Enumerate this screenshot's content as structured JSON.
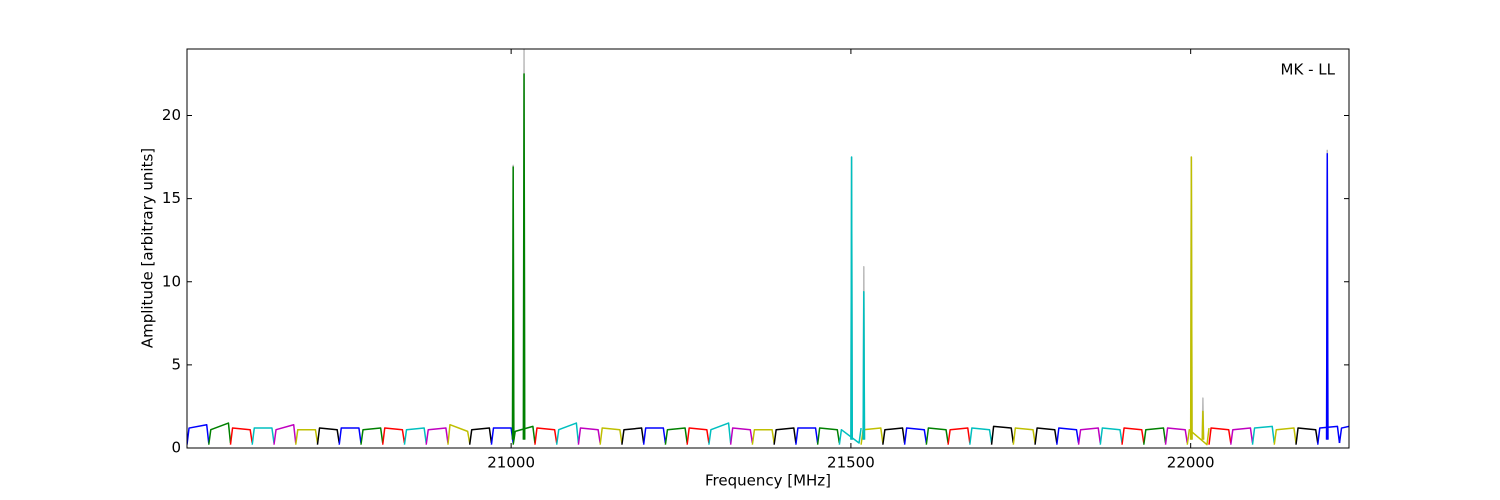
{
  "chart_data": {
    "type": "line",
    "annotation": "MK - LL",
    "x_label": "Frequency [MHz]",
    "y_label": "Amplitude [arbitrary units]",
    "xlim": [
      20523,
      22233
    ],
    "ylim": [
      0,
      24
    ],
    "xticks": [
      21000,
      21500,
      22000
    ],
    "yticks": [
      0,
      5,
      10,
      15,
      20
    ],
    "series": [
      {
        "color": "#bbbbbb",
        "x": [
          21002,
          21003,
          21004
        ],
        "values": [
          0.5,
          17.0,
          0.5
        ]
      },
      {
        "color": "#bbbbbb",
        "x": [
          21018,
          21019,
          21020
        ],
        "values": [
          0.5,
          24,
          0.5
        ]
      },
      {
        "color": "#bbbbbb",
        "x": [
          21500,
          21501,
          21502
        ],
        "values": [
          0.5,
          17.5,
          0.5
        ]
      },
      {
        "color": "#bbbbbb",
        "x": [
          21518,
          21519,
          21520
        ],
        "values": [
          0.5,
          10.9,
          0.5
        ]
      },
      {
        "color": "#bbbbbb",
        "x": [
          22000,
          22001,
          22002
        ],
        "values": [
          0.5,
          17.5,
          0.5
        ]
      },
      {
        "color": "#bbbbbb",
        "x": [
          22017,
          22018,
          22019
        ],
        "values": [
          0.5,
          3.0,
          0.5
        ]
      },
      {
        "color": "#bbbbbb",
        "x": [
          22200,
          22201,
          22202
        ],
        "values": [
          0.5,
          17.9,
          0.5
        ]
      },
      {
        "color": "#0000ff",
        "x": [
          20523,
          20526,
          20552,
          20555
        ],
        "values": [
          0.2,
          1.2,
          1.4,
          0.3
        ]
      },
      {
        "color": "#008000",
        "x": [
          20555,
          20558,
          20584,
          20587
        ],
        "values": [
          0.2,
          1.1,
          1.5,
          0.3
        ]
      },
      {
        "color": "#ff0000",
        "x": [
          20587,
          20590,
          20616,
          20619
        ],
        "values": [
          0.2,
          1.2,
          1.1,
          0.3
        ]
      },
      {
        "color": "#00bfbf",
        "x": [
          20619,
          20622,
          20648,
          20651
        ],
        "values": [
          0.2,
          1.2,
          1.2,
          0.3
        ]
      },
      {
        "color": "#bf00bf",
        "x": [
          20651,
          20654,
          20680,
          20683
        ],
        "values": [
          0.2,
          1.1,
          1.4,
          0.3
        ]
      },
      {
        "color": "#bfbf00",
        "x": [
          20683,
          20686,
          20712,
          20715
        ],
        "values": [
          0.2,
          1.1,
          1.1,
          0.3
        ]
      },
      {
        "color": "#000000",
        "x": [
          20715,
          20718,
          20744,
          20747
        ],
        "values": [
          0.2,
          1.2,
          1.1,
          0.3
        ]
      },
      {
        "color": "#0000ff",
        "x": [
          20747,
          20750,
          20776,
          20779
        ],
        "values": [
          0.2,
          1.2,
          1.2,
          0.3
        ]
      },
      {
        "color": "#008000",
        "x": [
          20779,
          20782,
          20808,
          20811
        ],
        "values": [
          0.2,
          1.1,
          1.2,
          0.3
        ]
      },
      {
        "color": "#ff0000",
        "x": [
          20811,
          20814,
          20840,
          20843
        ],
        "values": [
          0.2,
          1.2,
          1.1,
          0.3
        ]
      },
      {
        "color": "#00bfbf",
        "x": [
          20843,
          20846,
          20872,
          20875
        ],
        "values": [
          0.2,
          1.1,
          1.2,
          0.3
        ]
      },
      {
        "color": "#bf00bf",
        "x": [
          20875,
          20878,
          20904,
          20907
        ],
        "values": [
          0.2,
          1.1,
          1.2,
          0.3
        ]
      },
      {
        "color": "#bfbf00",
        "x": [
          20907,
          20910,
          20936,
          20939
        ],
        "values": [
          0.2,
          1.4,
          1.0,
          0.3
        ]
      },
      {
        "color": "#000000",
        "x": [
          20939,
          20942,
          20968,
          20971
        ],
        "values": [
          0.2,
          1.1,
          1.2,
          0.3
        ]
      },
      {
        "color": "#0000ff",
        "x": [
          20971,
          20974,
          21000,
          21003
        ],
        "values": [
          0.2,
          1.2,
          1.2,
          0.3
        ]
      },
      {
        "color": "#008000",
        "x": [
          21003,
          21006,
          21032,
          21035
        ],
        "values": [
          0.2,
          1.0,
          1.3,
          0.3
        ]
      },
      {
        "color": "#ff0000",
        "x": [
          21035,
          21038,
          21064,
          21067
        ],
        "values": [
          0.2,
          1.2,
          1.1,
          0.3
        ]
      },
      {
        "color": "#00bfbf",
        "x": [
          21067,
          21070,
          21096,
          21099
        ],
        "values": [
          0.2,
          1.1,
          1.5,
          0.3
        ]
      },
      {
        "color": "#bf00bf",
        "x": [
          21099,
          21102,
          21128,
          21131
        ],
        "values": [
          0.2,
          1.2,
          1.1,
          0.3
        ]
      },
      {
        "color": "#bfbf00",
        "x": [
          21131,
          21134,
          21160,
          21163
        ],
        "values": [
          0.2,
          1.2,
          1.1,
          0.3
        ]
      },
      {
        "color": "#000000",
        "x": [
          21163,
          21166,
          21192,
          21195
        ],
        "values": [
          0.2,
          1.1,
          1.2,
          0.3
        ]
      },
      {
        "color": "#0000ff",
        "x": [
          21195,
          21198,
          21224,
          21227
        ],
        "values": [
          0.2,
          1.2,
          1.2,
          0.3
        ]
      },
      {
        "color": "#008000",
        "x": [
          21227,
          21230,
          21256,
          21259
        ],
        "values": [
          0.2,
          1.1,
          1.2,
          0.3
        ]
      },
      {
        "color": "#ff0000",
        "x": [
          21259,
          21262,
          21288,
          21291
        ],
        "values": [
          0.2,
          1.2,
          1.1,
          0.3
        ]
      },
      {
        "color": "#00bfbf",
        "x": [
          21291,
          21294,
          21320,
          21323
        ],
        "values": [
          0.2,
          1.1,
          1.5,
          0.3
        ]
      },
      {
        "color": "#bf00bf",
        "x": [
          21323,
          21326,
          21352,
          21355
        ],
        "values": [
          0.2,
          1.2,
          1.1,
          0.3
        ]
      },
      {
        "color": "#bfbf00",
        "x": [
          21355,
          21358,
          21384,
          21387
        ],
        "values": [
          0.2,
          1.1,
          1.1,
          0.3
        ]
      },
      {
        "color": "#000000",
        "x": [
          21387,
          21390,
          21416,
          21419
        ],
        "values": [
          0.2,
          1.1,
          1.2,
          0.3
        ]
      },
      {
        "color": "#0000ff",
        "x": [
          21419,
          21422,
          21448,
          21451
        ],
        "values": [
          0.2,
          1.2,
          1.2,
          0.3
        ]
      },
      {
        "color": "#008000",
        "x": [
          21451,
          21454,
          21480,
          21483
        ],
        "values": [
          0.2,
          1.2,
          1.1,
          0.3
        ]
      },
      {
        "color": "#00bfbf",
        "x": [
          21483,
          21486,
          21512,
          21515
        ],
        "values": [
          0.2,
          1.1,
          0.3,
          1.2
        ]
      },
      {
        "color": "#bfbf00",
        "x": [
          21515,
          21518,
          21544,
          21547
        ],
        "values": [
          0.2,
          1.1,
          1.2,
          0.3
        ]
      },
      {
        "color": "#000000",
        "x": [
          21547,
          21550,
          21576,
          21579
        ],
        "values": [
          0.2,
          1.1,
          1.2,
          0.3
        ]
      },
      {
        "color": "#0000ff",
        "x": [
          21579,
          21582,
          21608,
          21611
        ],
        "values": [
          0.2,
          1.2,
          1.1,
          0.3
        ]
      },
      {
        "color": "#008000",
        "x": [
          21611,
          21614,
          21640,
          21643
        ],
        "values": [
          0.2,
          1.2,
          1.1,
          0.3
        ]
      },
      {
        "color": "#ff0000",
        "x": [
          21643,
          21646,
          21672,
          21675
        ],
        "values": [
          0.2,
          1.1,
          1.2,
          0.3
        ]
      },
      {
        "color": "#00bfbf",
        "x": [
          21675,
          21678,
          21704,
          21707
        ],
        "values": [
          0.2,
          1.2,
          1.1,
          0.3
        ]
      },
      {
        "color": "#000000",
        "x": [
          21707,
          21710,
          21736,
          21739
        ],
        "values": [
          0.2,
          1.3,
          1.2,
          0.3
        ]
      },
      {
        "color": "#bfbf00",
        "x": [
          21739,
          21742,
          21768,
          21771
        ],
        "values": [
          0.2,
          1.2,
          1.1,
          0.3
        ]
      },
      {
        "color": "#000000",
        "x": [
          21771,
          21774,
          21800,
          21803
        ],
        "values": [
          0.2,
          1.2,
          1.1,
          0.3
        ]
      },
      {
        "color": "#0000ff",
        "x": [
          21803,
          21806,
          21832,
          21835
        ],
        "values": [
          0.2,
          1.2,
          1.1,
          0.3
        ]
      },
      {
        "color": "#bf00bf",
        "x": [
          21835,
          21838,
          21864,
          21867
        ],
        "values": [
          0.2,
          1.1,
          1.2,
          0.3
        ]
      },
      {
        "color": "#00bfbf",
        "x": [
          21867,
          21870,
          21896,
          21899
        ],
        "values": [
          0.2,
          1.2,
          1.1,
          0.3
        ]
      },
      {
        "color": "#ff0000",
        "x": [
          21899,
          21902,
          21928,
          21931
        ],
        "values": [
          0.2,
          1.2,
          1.1,
          0.3
        ]
      },
      {
        "color": "#008000",
        "x": [
          21931,
          21934,
          21960,
          21963
        ],
        "values": [
          0.2,
          1.1,
          1.2,
          0.3
        ]
      },
      {
        "color": "#bf00bf",
        "x": [
          21963,
          21966,
          21992,
          21995
        ],
        "values": [
          0.2,
          1.2,
          1.1,
          0.3
        ]
      },
      {
        "color": "#bfbf00",
        "x": [
          21995,
          21998,
          22024,
          22027
        ],
        "values": [
          0.2,
          1.1,
          0.2,
          1.2
        ]
      },
      {
        "color": "#ff0000",
        "x": [
          22027,
          22030,
          22056,
          22059
        ],
        "values": [
          0.2,
          1.2,
          1.1,
          0.3
        ]
      },
      {
        "color": "#bf00bf",
        "x": [
          22059,
          22062,
          22088,
          22091
        ],
        "values": [
          0.2,
          1.1,
          1.2,
          0.3
        ]
      },
      {
        "color": "#00bfbf",
        "x": [
          22091,
          22094,
          22120,
          22123
        ],
        "values": [
          0.2,
          1.2,
          1.3,
          0.3
        ]
      },
      {
        "color": "#bfbf00",
        "x": [
          22123,
          22126,
          22152,
          22155
        ],
        "values": [
          0.2,
          1.1,
          1.2,
          0.3
        ]
      },
      {
        "color": "#000000",
        "x": [
          22155,
          22158,
          22184,
          22187
        ],
        "values": [
          0.2,
          1.2,
          1.1,
          0.3
        ]
      },
      {
        "color": "#0000ff",
        "x": [
          22187,
          22190,
          22216,
          22219
        ],
        "values": [
          0.2,
          1.2,
          1.3,
          0.3
        ]
      },
      {
        "color": "#0000ff",
        "x": [
          22219,
          22222,
          22233
        ],
        "values": [
          0.3,
          1.2,
          1.3
        ]
      },
      {
        "color": "#008000",
        "x": [
          21002,
          21003,
          21004
        ],
        "values": [
          0.5,
          16.9,
          0.5
        ]
      },
      {
        "color": "#008000",
        "x": [
          21018,
          21019,
          21020
        ],
        "values": [
          0.5,
          22.5,
          0.5
        ]
      },
      {
        "color": "#00bfbf",
        "x": [
          21500,
          21501,
          21502
        ],
        "values": [
          0.5,
          17.5,
          0.5
        ]
      },
      {
        "color": "#00bfbf",
        "x": [
          21518,
          21519,
          21520
        ],
        "values": [
          0.5,
          9.4,
          0.5
        ]
      },
      {
        "color": "#bfbf00",
        "x": [
          22000,
          22001,
          22002
        ],
        "values": [
          0.5,
          17.5,
          0.5
        ]
      },
      {
        "color": "#bfbf00",
        "x": [
          22017,
          22018,
          22019
        ],
        "values": [
          0.5,
          2.2,
          0.5
        ]
      },
      {
        "color": "#0000ff",
        "x": [
          22200,
          22201,
          22202
        ],
        "values": [
          0.5,
          17.7,
          0.5
        ]
      }
    ]
  }
}
